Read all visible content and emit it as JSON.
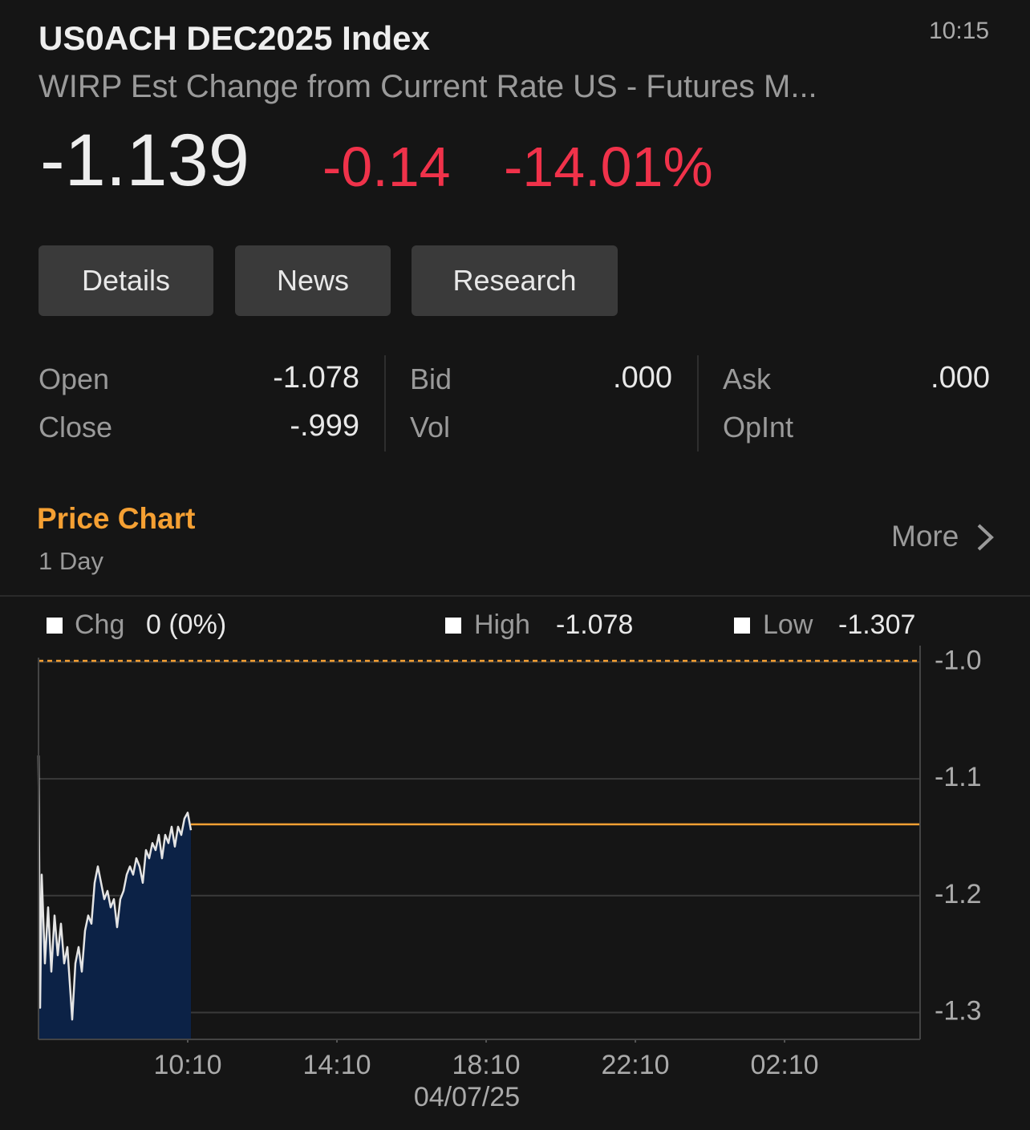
{
  "header": {
    "title": "US0ACH DEC2025 Index",
    "subtitle": "WIRP Est Change from Current Rate US - Futures M...",
    "time": "10:15"
  },
  "quote": {
    "last": "-1.139",
    "change": "-0.14",
    "percent": "-14.01%"
  },
  "buttons": [
    "Details",
    "News",
    "Research"
  ],
  "stats": [
    {
      "label": "Open",
      "value": "-1.078"
    },
    {
      "label": "Close",
      "value": "-.999"
    },
    {
      "label": "Bid",
      "value": ".000"
    },
    {
      "label": "Vol"
    },
    {
      "label": "Ask",
      "value": ".000"
    },
    {
      "label": "OpInt"
    }
  ],
  "section": {
    "title": "Price Chart",
    "period": "1 Day",
    "more": "More"
  },
  "chart_data": {
    "type": "line",
    "legend": [
      {
        "label": "Chg",
        "value": "0 (0%)"
      },
      {
        "label": "High",
        "value": "-1.078"
      },
      {
        "label": "Low",
        "value": "-1.307"
      }
    ],
    "x": [
      6.167,
      6.21,
      6.253,
      6.339,
      6.425,
      6.511,
      6.597,
      6.683,
      6.769,
      6.855,
      6.941,
      7.027,
      7.07,
      7.156,
      7.242,
      7.328,
      7.414,
      7.5,
      7.586,
      7.672,
      7.758,
      7.844,
      7.93,
      8.016,
      8.102,
      8.188,
      8.274,
      8.36,
      8.446,
      8.532,
      8.618,
      8.704,
      8.79,
      8.876,
      8.962,
      9.048,
      9.134,
      9.22,
      9.306,
      9.392,
      9.478,
      9.564,
      9.65,
      9.736,
      9.822,
      9.908,
      9.994,
      10.08,
      10.166,
      10.253
    ],
    "series": [
      {
        "color": "#e4e4e4",
        "fill": "#0c2246",
        "values": [
          -1.08,
          -1.296,
          -1.182,
          -1.258,
          -1.21,
          -1.265,
          -1.217,
          -1.251,
          -1.224,
          -1.258,
          -1.244,
          -1.285,
          -1.306,
          -1.258,
          -1.244,
          -1.265,
          -1.23,
          -1.217,
          -1.224,
          -1.189,
          -1.175,
          -1.189,
          -1.203,
          -1.196,
          -1.21,
          -1.203,
          -1.227,
          -1.203,
          -1.196,
          -1.182,
          -1.175,
          -1.182,
          -1.168,
          -1.175,
          -1.189,
          -1.161,
          -1.168,
          -1.155,
          -1.161,
          -1.148,
          -1.168,
          -1.148,
          -1.155,
          -1.141,
          -1.158,
          -1.141,
          -1.148,
          -1.134,
          -1.129,
          -1.144
        ]
      }
    ],
    "reference_lines": [
      {
        "value": -0.999,
        "color": "#f5a033",
        "style": "dashed"
      },
      {
        "value": -1.139,
        "color": "#f5a033",
        "style": "solid",
        "from_x": 10.253
      }
    ],
    "xlim": [
      6.167,
      29.8
    ],
    "xticks": [
      {
        "value": 10.167,
        "label": "10:10"
      },
      {
        "value": 14.167,
        "label": "14:10"
      },
      {
        "value": 18.167,
        "label": "18:10"
      },
      {
        "value": 22.167,
        "label": "22:10"
      },
      {
        "value": 26.167,
        "label": "02:10"
      }
    ],
    "x_date": "04/07/25",
    "ylim": [
      -1.323,
      -0.986
    ],
    "yticks": [
      {
        "value": -1,
        "label": "-1.0"
      },
      -1.1,
      -1.2,
      -1.3
    ],
    "grid": true
  }
}
